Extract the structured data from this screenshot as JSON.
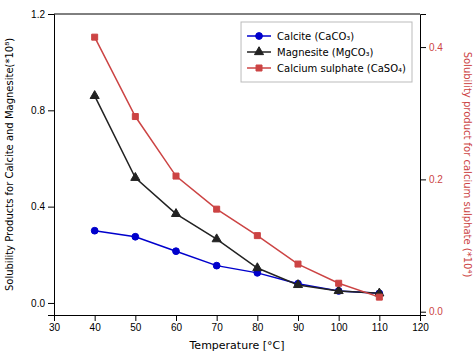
{
  "chart_data": {
    "type": "line",
    "x_label": "Temperature [°C]",
    "y_label": "Solubility Products for Calcite and Magnesite(*10⁸)",
    "y2_label": "Solubility product for calcium sulphate (*10⁴)",
    "x": [
      40,
      50,
      60,
      70,
      80,
      90,
      100,
      110
    ],
    "series": [
      {
        "name": "Calcite (CaCO₃)",
        "color": "#0000cc",
        "marker": "circle",
        "values": [
          0.3,
          0.275,
          0.215,
          0.155,
          0.125,
          0.08,
          0.05,
          0.04
        ]
      },
      {
        "name": "Magnesite (MgCO₃)",
        "color": "#222222",
        "marker": "triangle",
        "values": [
          0.86,
          0.52,
          0.37,
          0.265,
          0.145,
          0.075,
          0.05,
          0.04
        ]
      },
      {
        "name": "Calcium sulphate (CaSO₄)",
        "color": "#cc4444",
        "marker": "square",
        "axis": "y2",
        "values": [
          0.415,
          0.295,
          0.205,
          0.155,
          0.115,
          0.072,
          0.043,
          0.022
        ]
      }
    ],
    "xlim": [
      30,
      120
    ],
    "xticks": [
      30,
      40,
      50,
      60,
      70,
      80,
      90,
      100,
      110,
      120
    ],
    "ylim": [
      -0.05,
      1.2
    ],
    "yticks": [
      {
        "value": 0,
        "label": "0.0"
      },
      0.4,
      0.8,
      1.2
    ],
    "y2lim": [
      -0.005,
      0.45
    ],
    "y2ticks": [
      {
        "value": 0,
        "label": "0.0"
      },
      0.2,
      0.4
    ],
    "legend": "upper right",
    "grid": false
  }
}
